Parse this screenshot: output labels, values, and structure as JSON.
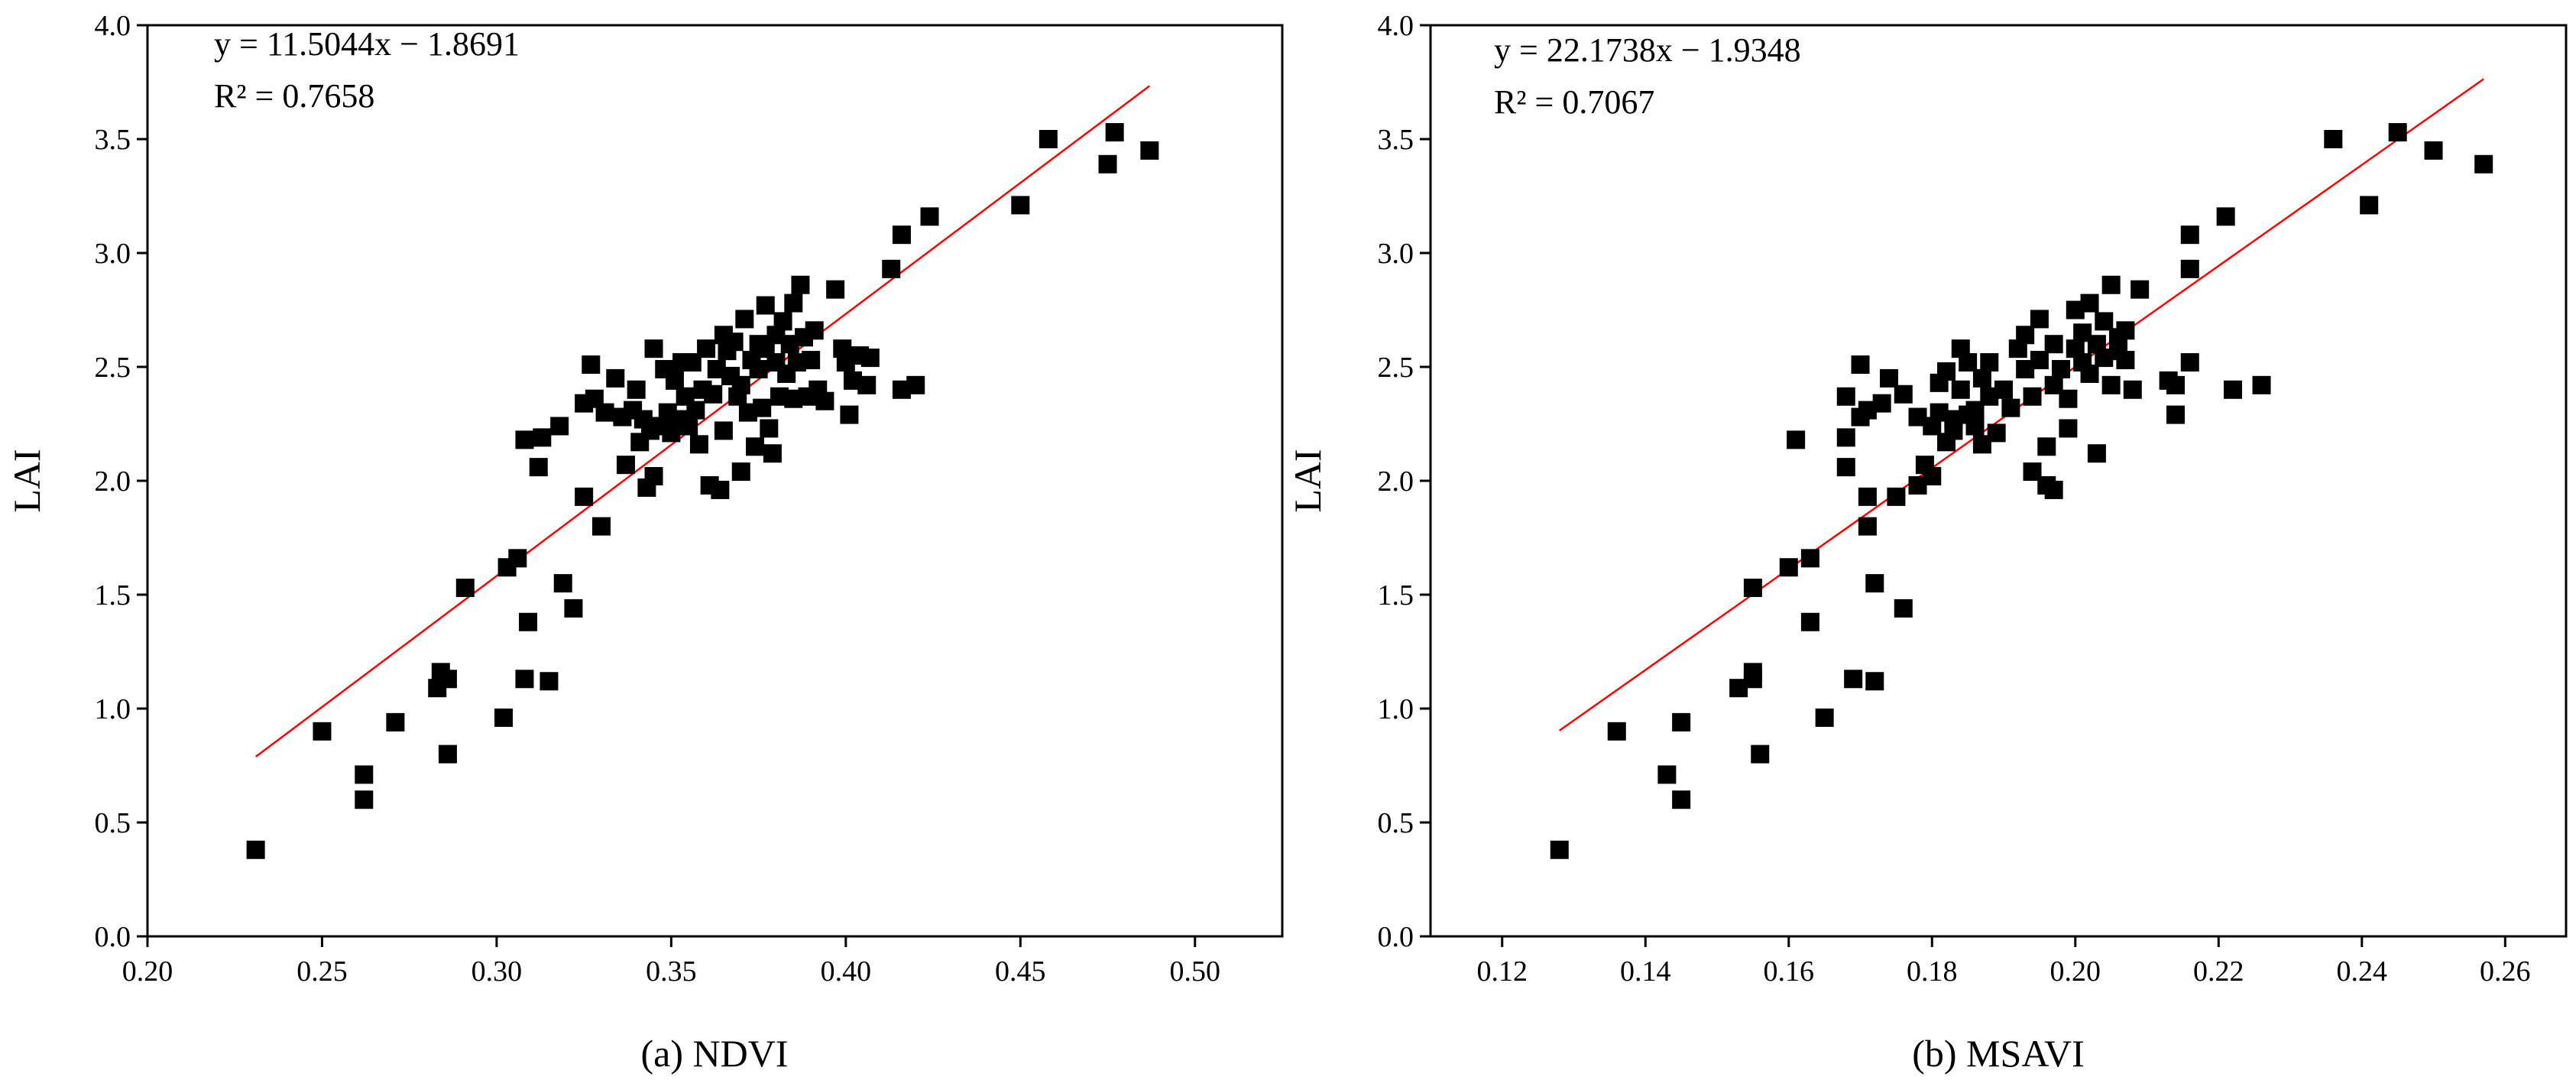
{
  "chart_data": [
    {
      "type": "scatter",
      "xlabel": "(a) NDVI",
      "ylabel": "LAI",
      "xlim": [
        0.2,
        0.525
      ],
      "ylim": [
        0.0,
        4.0
      ],
      "xticks": [
        "0.20",
        "0.25",
        "0.30",
        "0.35",
        "0.40",
        "0.45",
        "0.50"
      ],
      "yticks": [
        "0.0",
        "0.5",
        "1.0",
        "1.5",
        "2.0",
        "2.5",
        "3.0",
        "3.5",
        "4.0"
      ],
      "equation": "y = 11.5044x − 1.8691",
      "r2": "R² = 0.7658",
      "fit": {
        "slope": 11.5044,
        "intercept": -1.8691,
        "x_range": [
          0.231,
          0.487
        ]
      },
      "grid": false,
      "points": [
        [
          0.231,
          0.38
        ],
        [
          0.25,
          0.9
        ],
        [
          0.262,
          0.71
        ],
        [
          0.262,
          0.6
        ],
        [
          0.271,
          0.94
        ],
        [
          0.283,
          1.09
        ],
        [
          0.284,
          1.16
        ],
        [
          0.286,
          1.13
        ],
        [
          0.286,
          0.8
        ],
        [
          0.291,
          1.53
        ],
        [
          0.302,
          0.96
        ],
        [
          0.303,
          1.62
        ],
        [
          0.306,
          1.66
        ],
        [
          0.308,
          1.13
        ],
        [
          0.308,
          2.18
        ],
        [
          0.309,
          1.38
        ],
        [
          0.312,
          2.06
        ],
        [
          0.313,
          2.19
        ],
        [
          0.315,
          1.12
        ],
        [
          0.318,
          2.24
        ],
        [
          0.319,
          1.55
        ],
        [
          0.322,
          1.44
        ],
        [
          0.325,
          1.93
        ],
        [
          0.325,
          2.34
        ],
        [
          0.327,
          2.51
        ],
        [
          0.328,
          2.36
        ],
        [
          0.33,
          1.8
        ],
        [
          0.331,
          2.3
        ],
        [
          0.334,
          2.45
        ],
        [
          0.336,
          2.28
        ],
        [
          0.337,
          2.07
        ],
        [
          0.339,
          2.31
        ],
        [
          0.34,
          2.4
        ],
        [
          0.341,
          2.17
        ],
        [
          0.342,
          2.27
        ],
        [
          0.343,
          1.97
        ],
        [
          0.344,
          2.22
        ],
        [
          0.345,
          2.02
        ],
        [
          0.345,
          2.58
        ],
        [
          0.347,
          2.24
        ],
        [
          0.348,
          2.49
        ],
        [
          0.349,
          2.3
        ],
        [
          0.35,
          2.21
        ],
        [
          0.351,
          2.44
        ],
        [
          0.352,
          2.27
        ],
        [
          0.353,
          2.52
        ],
        [
          0.354,
          2.37
        ],
        [
          0.355,
          2.24
        ],
        [
          0.356,
          2.52
        ],
        [
          0.357,
          2.31
        ],
        [
          0.358,
          2.16
        ],
        [
          0.359,
          2.4
        ],
        [
          0.36,
          2.58
        ],
        [
          0.361,
          1.98
        ],
        [
          0.362,
          2.38
        ],
        [
          0.363,
          2.49
        ],
        [
          0.364,
          1.96
        ],
        [
          0.365,
          2.22
        ],
        [
          0.365,
          2.64
        ],
        [
          0.366,
          2.57
        ],
        [
          0.367,
          2.46
        ],
        [
          0.368,
          2.61
        ],
        [
          0.369,
          2.37
        ],
        [
          0.37,
          2.04
        ],
        [
          0.37,
          2.42
        ],
        [
          0.371,
          2.71
        ],
        [
          0.372,
          2.3
        ],
        [
          0.373,
          2.53
        ],
        [
          0.374,
          2.15
        ],
        [
          0.375,
          2.6
        ],
        [
          0.375,
          2.49
        ],
        [
          0.376,
          2.32
        ],
        [
          0.377,
          2.58
        ],
        [
          0.377,
          2.77
        ],
        [
          0.378,
          2.23
        ],
        [
          0.379,
          2.12
        ],
        [
          0.38,
          2.64
        ],
        [
          0.38,
          2.52
        ],
        [
          0.381,
          2.37
        ],
        [
          0.382,
          2.7
        ],
        [
          0.383,
          2.47
        ],
        [
          0.384,
          2.6
        ],
        [
          0.385,
          2.36
        ],
        [
          0.385,
          2.78
        ],
        [
          0.386,
          2.52
        ],
        [
          0.387,
          2.86
        ],
        [
          0.388,
          2.63
        ],
        [
          0.389,
          2.37
        ],
        [
          0.39,
          2.53
        ],
        [
          0.391,
          2.66
        ],
        [
          0.392,
          2.4
        ],
        [
          0.394,
          2.35
        ],
        [
          0.397,
          2.84
        ],
        [
          0.399,
          2.58
        ],
        [
          0.4,
          2.52
        ],
        [
          0.401,
          2.29
        ],
        [
          0.402,
          2.44
        ],
        [
          0.404,
          2.55
        ],
        [
          0.406,
          2.42
        ],
        [
          0.407,
          2.54
        ],
        [
          0.413,
          2.93
        ],
        [
          0.416,
          2.4
        ],
        [
          0.416,
          3.08
        ],
        [
          0.42,
          2.42
        ],
        [
          0.424,
          3.16
        ],
        [
          0.45,
          3.21
        ],
        [
          0.458,
          3.5
        ],
        [
          0.475,
          3.39
        ],
        [
          0.477,
          3.53
        ],
        [
          0.487,
          3.45
        ]
      ]
    },
    {
      "type": "scatter",
      "xlabel": "(b) MSAVI",
      "ylabel": "LAI",
      "xlim": [
        0.11,
        0.2685
      ],
      "ylim": [
        0.0,
        4.0
      ],
      "xticks": [
        "0.12",
        "0.14",
        "0.16",
        "0.18",
        "0.20",
        "0.22",
        "0.24",
        "0.26"
      ],
      "yticks": [
        "0.0",
        "0.5",
        "1.0",
        "1.5",
        "2.0",
        "2.5",
        "3.0",
        "3.5",
        "4.0"
      ],
      "equation": "y = 22.1738x − 1.9348",
      "r2": "R² = 0.7067",
      "fit": {
        "slope": 22.1738,
        "intercept": -1.9348,
        "x_range": [
          0.128,
          0.257
        ]
      },
      "grid": false,
      "points": [
        [
          0.128,
          0.38
        ],
        [
          0.136,
          0.9
        ],
        [
          0.143,
          0.71
        ],
        [
          0.145,
          0.94
        ],
        [
          0.145,
          0.6
        ],
        [
          0.153,
          1.09
        ],
        [
          0.155,
          1.16
        ],
        [
          0.155,
          1.13
        ],
        [
          0.155,
          1.53
        ],
        [
          0.156,
          0.8
        ],
        [
          0.16,
          1.62
        ],
        [
          0.161,
          2.18
        ],
        [
          0.163,
          1.66
        ],
        [
          0.163,
          1.38
        ],
        [
          0.165,
          0.96
        ],
        [
          0.168,
          2.37
        ],
        [
          0.168,
          2.06
        ],
        [
          0.168,
          2.19
        ],
        [
          0.169,
          1.13
        ],
        [
          0.17,
          2.28
        ],
        [
          0.17,
          2.51
        ],
        [
          0.171,
          1.8
        ],
        [
          0.171,
          1.93
        ],
        [
          0.171,
          2.31
        ],
        [
          0.172,
          1.12
        ],
        [
          0.172,
          1.55
        ],
        [
          0.173,
          2.34
        ],
        [
          0.174,
          2.45
        ],
        [
          0.175,
          1.93
        ],
        [
          0.176,
          1.44
        ],
        [
          0.176,
          2.38
        ],
        [
          0.178,
          2.28
        ],
        [
          0.178,
          1.98
        ],
        [
          0.179,
          2.07
        ],
        [
          0.18,
          2.02
        ],
        [
          0.18,
          2.24
        ],
        [
          0.181,
          2.3
        ],
        [
          0.181,
          2.43
        ],
        [
          0.182,
          2.17
        ],
        [
          0.182,
          2.48
        ],
        [
          0.183,
          2.27
        ],
        [
          0.183,
          2.22
        ],
        [
          0.184,
          2.4
        ],
        [
          0.184,
          2.58
        ],
        [
          0.185,
          2.29
        ],
        [
          0.185,
          2.52
        ],
        [
          0.186,
          2.24
        ],
        [
          0.186,
          2.31
        ],
        [
          0.187,
          2.16
        ],
        [
          0.187,
          2.45
        ],
        [
          0.188,
          2.37
        ],
        [
          0.188,
          2.52
        ],
        [
          0.189,
          2.21
        ],
        [
          0.19,
          2.4
        ],
        [
          0.191,
          2.32
        ],
        [
          0.192,
          2.58
        ],
        [
          0.193,
          2.49
        ],
        [
          0.193,
          2.64
        ],
        [
          0.194,
          2.37
        ],
        [
          0.194,
          2.04
        ],
        [
          0.195,
          2.71
        ],
        [
          0.195,
          2.53
        ],
        [
          0.196,
          2.15
        ],
        [
          0.196,
          1.98
        ],
        [
          0.197,
          2.42
        ],
        [
          0.197,
          2.6
        ],
        [
          0.197,
          1.96
        ],
        [
          0.198,
          2.49
        ],
        [
          0.199,
          2.23
        ],
        [
          0.199,
          2.36
        ],
        [
          0.2,
          2.58
        ],
        [
          0.2,
          2.75
        ],
        [
          0.201,
          2.52
        ],
        [
          0.201,
          2.65
        ],
        [
          0.202,
          2.47
        ],
        [
          0.202,
          2.78
        ],
        [
          0.203,
          2.12
        ],
        [
          0.203,
          2.6
        ],
        [
          0.204,
          2.54
        ],
        [
          0.204,
          2.7
        ],
        [
          0.205,
          2.86
        ],
        [
          0.205,
          2.42
        ],
        [
          0.206,
          2.63
        ],
        [
          0.206,
          2.57
        ],
        [
          0.207,
          2.66
        ],
        [
          0.207,
          2.53
        ],
        [
          0.208,
          2.4
        ],
        [
          0.209,
          2.84
        ],
        [
          0.213,
          2.44
        ],
        [
          0.214,
          2.29
        ],
        [
          0.214,
          2.42
        ],
        [
          0.216,
          2.52
        ],
        [
          0.216,
          2.93
        ],
        [
          0.216,
          3.08
        ],
        [
          0.221,
          3.16
        ],
        [
          0.222,
          2.4
        ],
        [
          0.226,
          2.42
        ],
        [
          0.236,
          3.5
        ],
        [
          0.241,
          3.21
        ],
        [
          0.245,
          3.53
        ],
        [
          0.25,
          3.45
        ],
        [
          0.257,
          3.39
        ]
      ]
    }
  ]
}
